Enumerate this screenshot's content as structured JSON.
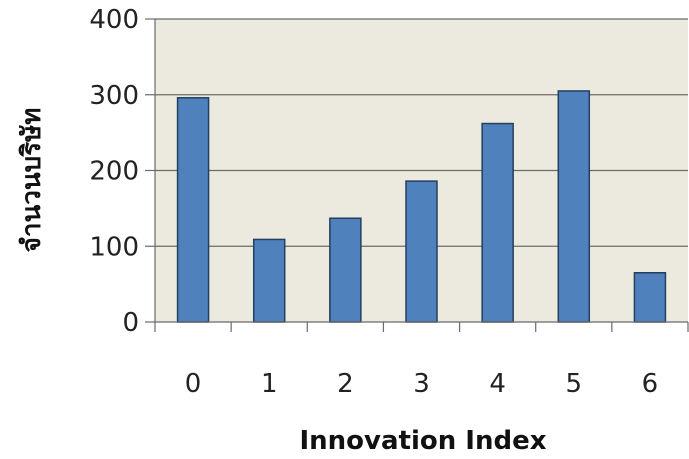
{
  "chart_data": {
    "type": "bar",
    "categories": [
      "0",
      "1",
      "2",
      "3",
      "4",
      "5",
      "6"
    ],
    "values": [
      296,
      109,
      137,
      186,
      262,
      305,
      65
    ],
    "title": "",
    "xlabel": "Innovation Index",
    "ylabel": "จำนวนบริษัท",
    "ylim": [
      0,
      400
    ],
    "yticks": [
      "0",
      "100",
      "200",
      "300",
      "400"
    ],
    "grid": true,
    "legend": "none"
  },
  "colors": {
    "plot_background": "#ECE9DF",
    "bar_fill": "#4F81BD",
    "bar_stroke": "#243F60",
    "grid": "#6B6B6B"
  }
}
